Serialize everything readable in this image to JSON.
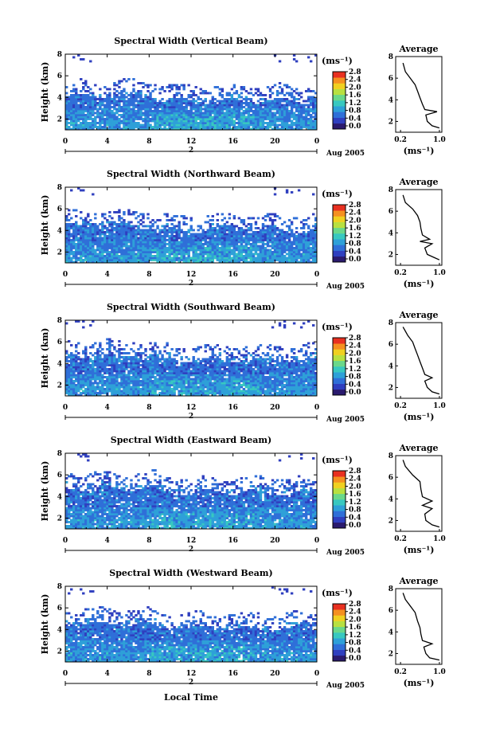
{
  "figure": {
    "xlabel_bottom": "Local Time",
    "day_label": "2",
    "date_label": "Aug 2005",
    "height_label": "Height (km)",
    "unit_label": "(ms⁻¹)",
    "avg_title": "Average",
    "avg_unit": "(ms⁻¹)"
  },
  "colorbar": {
    "ticks": [
      "0.0",
      "0.4",
      "0.8",
      "1.2",
      "1.6",
      "2.0",
      "2.4",
      "2.8"
    ],
    "colors": [
      "#2a1a6e",
      "#2f3fbf",
      "#2f6fd8",
      "#2ea0d8",
      "#38c8c0",
      "#6ad88a",
      "#b8e040",
      "#f0d020",
      "#f59020",
      "#e83020"
    ]
  },
  "chart_data": [
    {
      "type": "heatmap",
      "title": "Spectral Width (Vertical Beam)",
      "x_ticks": [
        "0",
        "4",
        "8",
        "12",
        "16",
        "20",
        "0"
      ],
      "y_ticks": [
        "2",
        "4",
        "6",
        "8"
      ],
      "xlim": [
        0,
        24
      ],
      "ylim": [
        1,
        8
      ],
      "average": {
        "x_ticks": [
          "0.2",
          "1.0"
        ],
        "y_ticks": [
          "2",
          "4",
          "6",
          "8"
        ],
        "profile": [
          [
            0.25,
            7.4
          ],
          [
            0.3,
            6.6
          ],
          [
            0.4,
            6.0
          ],
          [
            0.5,
            5.4
          ],
          [
            0.55,
            4.8
          ],
          [
            0.6,
            4.2
          ],
          [
            0.65,
            3.6
          ],
          [
            0.7,
            3.1
          ],
          [
            0.95,
            2.9
          ],
          [
            0.72,
            2.6
          ],
          [
            0.75,
            2.0
          ],
          [
            0.85,
            1.6
          ],
          [
            1.0,
            1.4
          ]
        ]
      },
      "cloud_top_km": 4.6
    },
    {
      "type": "heatmap",
      "title": "Spectral Width (Northward Beam)",
      "x_ticks": [
        "0",
        "4",
        "8",
        "12",
        "16",
        "20",
        "0"
      ],
      "y_ticks": [
        "2",
        "4",
        "6",
        "8"
      ],
      "xlim": [
        0,
        24
      ],
      "ylim": [
        1,
        8
      ],
      "average": {
        "x_ticks": [
          "0.2",
          "1.0"
        ],
        "y_ticks": [
          "2",
          "4",
          "6",
          "8"
        ],
        "profile": [
          [
            0.25,
            7.5
          ],
          [
            0.3,
            6.8
          ],
          [
            0.45,
            6.2
          ],
          [
            0.55,
            5.6
          ],
          [
            0.6,
            5.0
          ],
          [
            0.62,
            4.4
          ],
          [
            0.65,
            3.8
          ],
          [
            0.8,
            3.4
          ],
          [
            0.6,
            3.2
          ],
          [
            0.85,
            3.0
          ],
          [
            0.7,
            2.6
          ],
          [
            0.75,
            2.0
          ],
          [
            0.9,
            1.7
          ],
          [
            1.0,
            1.5
          ]
        ]
      },
      "cloud_top_km": 4.9
    },
    {
      "type": "heatmap",
      "title": "Spectral Width (Southward Beam)",
      "x_ticks": [
        "0",
        "4",
        "8",
        "12",
        "16",
        "20",
        "0"
      ],
      "y_ticks": [
        "2",
        "4",
        "6",
        "8"
      ],
      "xlim": [
        0,
        24
      ],
      "ylim": [
        1,
        8
      ],
      "average": {
        "x_ticks": [
          "0.2",
          "1.0"
        ],
        "y_ticks": [
          "2",
          "4",
          "6",
          "8"
        ],
        "profile": [
          [
            0.25,
            7.6
          ],
          [
            0.35,
            6.8
          ],
          [
            0.45,
            6.2
          ],
          [
            0.5,
            5.6
          ],
          [
            0.55,
            5.0
          ],
          [
            0.6,
            4.4
          ],
          [
            0.65,
            3.8
          ],
          [
            0.7,
            3.2
          ],
          [
            0.85,
            2.9
          ],
          [
            0.7,
            2.6
          ],
          [
            0.75,
            2.0
          ],
          [
            0.85,
            1.6
          ],
          [
            1.0,
            1.4
          ]
        ]
      },
      "cloud_top_km": 5.2
    },
    {
      "type": "heatmap",
      "title": "Spectral Width (Eastward Beam)",
      "x_ticks": [
        "0",
        "4",
        "8",
        "12",
        "16",
        "20",
        "0"
      ],
      "y_ticks": [
        "2",
        "4",
        "6",
        "8"
      ],
      "xlim": [
        0,
        24
      ],
      "ylim": [
        1,
        8
      ],
      "average": {
        "x_ticks": [
          "0.2",
          "1.0"
        ],
        "y_ticks": [
          "2",
          "4",
          "6",
          "8"
        ],
        "profile": [
          [
            0.25,
            7.6
          ],
          [
            0.3,
            7.0
          ],
          [
            0.45,
            6.2
          ],
          [
            0.6,
            5.6
          ],
          [
            0.62,
            4.9
          ],
          [
            0.65,
            4.2
          ],
          [
            0.85,
            3.8
          ],
          [
            0.65,
            3.4
          ],
          [
            0.85,
            3.1
          ],
          [
            0.7,
            2.6
          ],
          [
            0.72,
            2.0
          ],
          [
            0.85,
            1.6
          ],
          [
            1.0,
            1.4
          ]
        ]
      },
      "cloud_top_km": 5.3
    },
    {
      "type": "heatmap",
      "title": "Spectral Width (Westward Beam)",
      "x_ticks": [
        "0",
        "4",
        "8",
        "12",
        "16",
        "20",
        "0"
      ],
      "y_ticks": [
        "2",
        "4",
        "6",
        "8"
      ],
      "xlim": [
        0,
        24
      ],
      "ylim": [
        1,
        8
      ],
      "average": {
        "x_ticks": [
          "0.2",
          "1.0"
        ],
        "y_ticks": [
          "2",
          "4",
          "6",
          "8"
        ],
        "profile": [
          [
            0.25,
            7.6
          ],
          [
            0.3,
            7.0
          ],
          [
            0.4,
            6.4
          ],
          [
            0.5,
            5.8
          ],
          [
            0.55,
            5.0
          ],
          [
            0.6,
            4.4
          ],
          [
            0.62,
            3.8
          ],
          [
            0.65,
            3.2
          ],
          [
            0.85,
            2.9
          ],
          [
            0.68,
            2.6
          ],
          [
            0.72,
            2.0
          ],
          [
            0.8,
            1.6
          ],
          [
            1.0,
            1.4
          ]
        ]
      },
      "cloud_top_km": 5.0
    }
  ]
}
